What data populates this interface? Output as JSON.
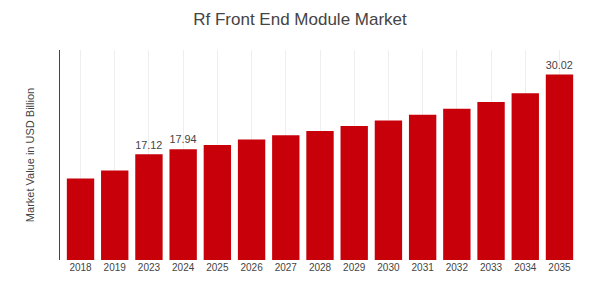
{
  "chart_data": {
    "type": "bar",
    "title": "Rf Front End Module Market",
    "ylabel": "Market Value in USD Billion",
    "categories": [
      "2018",
      "2019",
      "2023",
      "2024",
      "2025",
      "2026",
      "2027",
      "2028",
      "2029",
      "2030",
      "2031",
      "2032",
      "2033",
      "2034",
      "2035"
    ],
    "values": [
      13.2,
      14.5,
      17.12,
      17.94,
      18.6,
      19.5,
      20.2,
      20.9,
      21.7,
      22.6,
      23.5,
      24.5,
      25.6,
      27.0,
      30.02
    ],
    "value_labels": [
      null,
      null,
      "17.12",
      "17.94",
      null,
      null,
      null,
      null,
      null,
      null,
      null,
      null,
      null,
      null,
      "30.02"
    ],
    "color": "#c8000a",
    "ylim": [
      0,
      34
    ],
    "yticks": [],
    "grid": true,
    "tick_labels": "x"
  }
}
